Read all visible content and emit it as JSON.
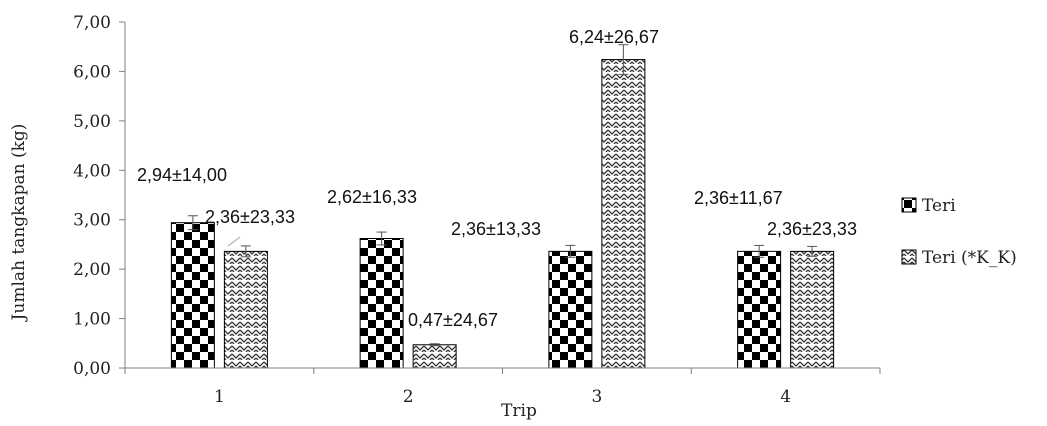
{
  "chart_data": {
    "type": "bar",
    "xlabel": "Trip",
    "ylabel": "Jumlah tangkapan (kg)",
    "categories": [
      "1",
      "2",
      "3",
      "4"
    ],
    "ylim": [
      0,
      7
    ],
    "ytick_labels": [
      "0,00",
      "1,00",
      "2,00",
      "3,00",
      "4,00",
      "5,00",
      "6,00",
      "7,00"
    ],
    "grid": false,
    "legend_position": "right",
    "series": [
      {
        "name": "Teri",
        "pattern": "checkerboard",
        "values": [
          2.94,
          2.62,
          2.36,
          2.36
        ],
        "errors": [
          0.14,
          0.13,
          0.12,
          0.12
        ],
        "labels": [
          "2,94±14,00",
          "2,62±16,33",
          "2,36±13,33",
          "2,36±11,67"
        ]
      },
      {
        "name": "Teri (*K_K)",
        "pattern": "zigzag",
        "values": [
          2.36,
          0.47,
          6.24,
          2.36
        ],
        "errors": [
          0.11,
          0.02,
          0.3,
          0.1
        ],
        "labels": [
          "2,36±23,33",
          "0,47±24,67",
          "6,24±26,67",
          "2,36±23,33"
        ]
      }
    ]
  }
}
